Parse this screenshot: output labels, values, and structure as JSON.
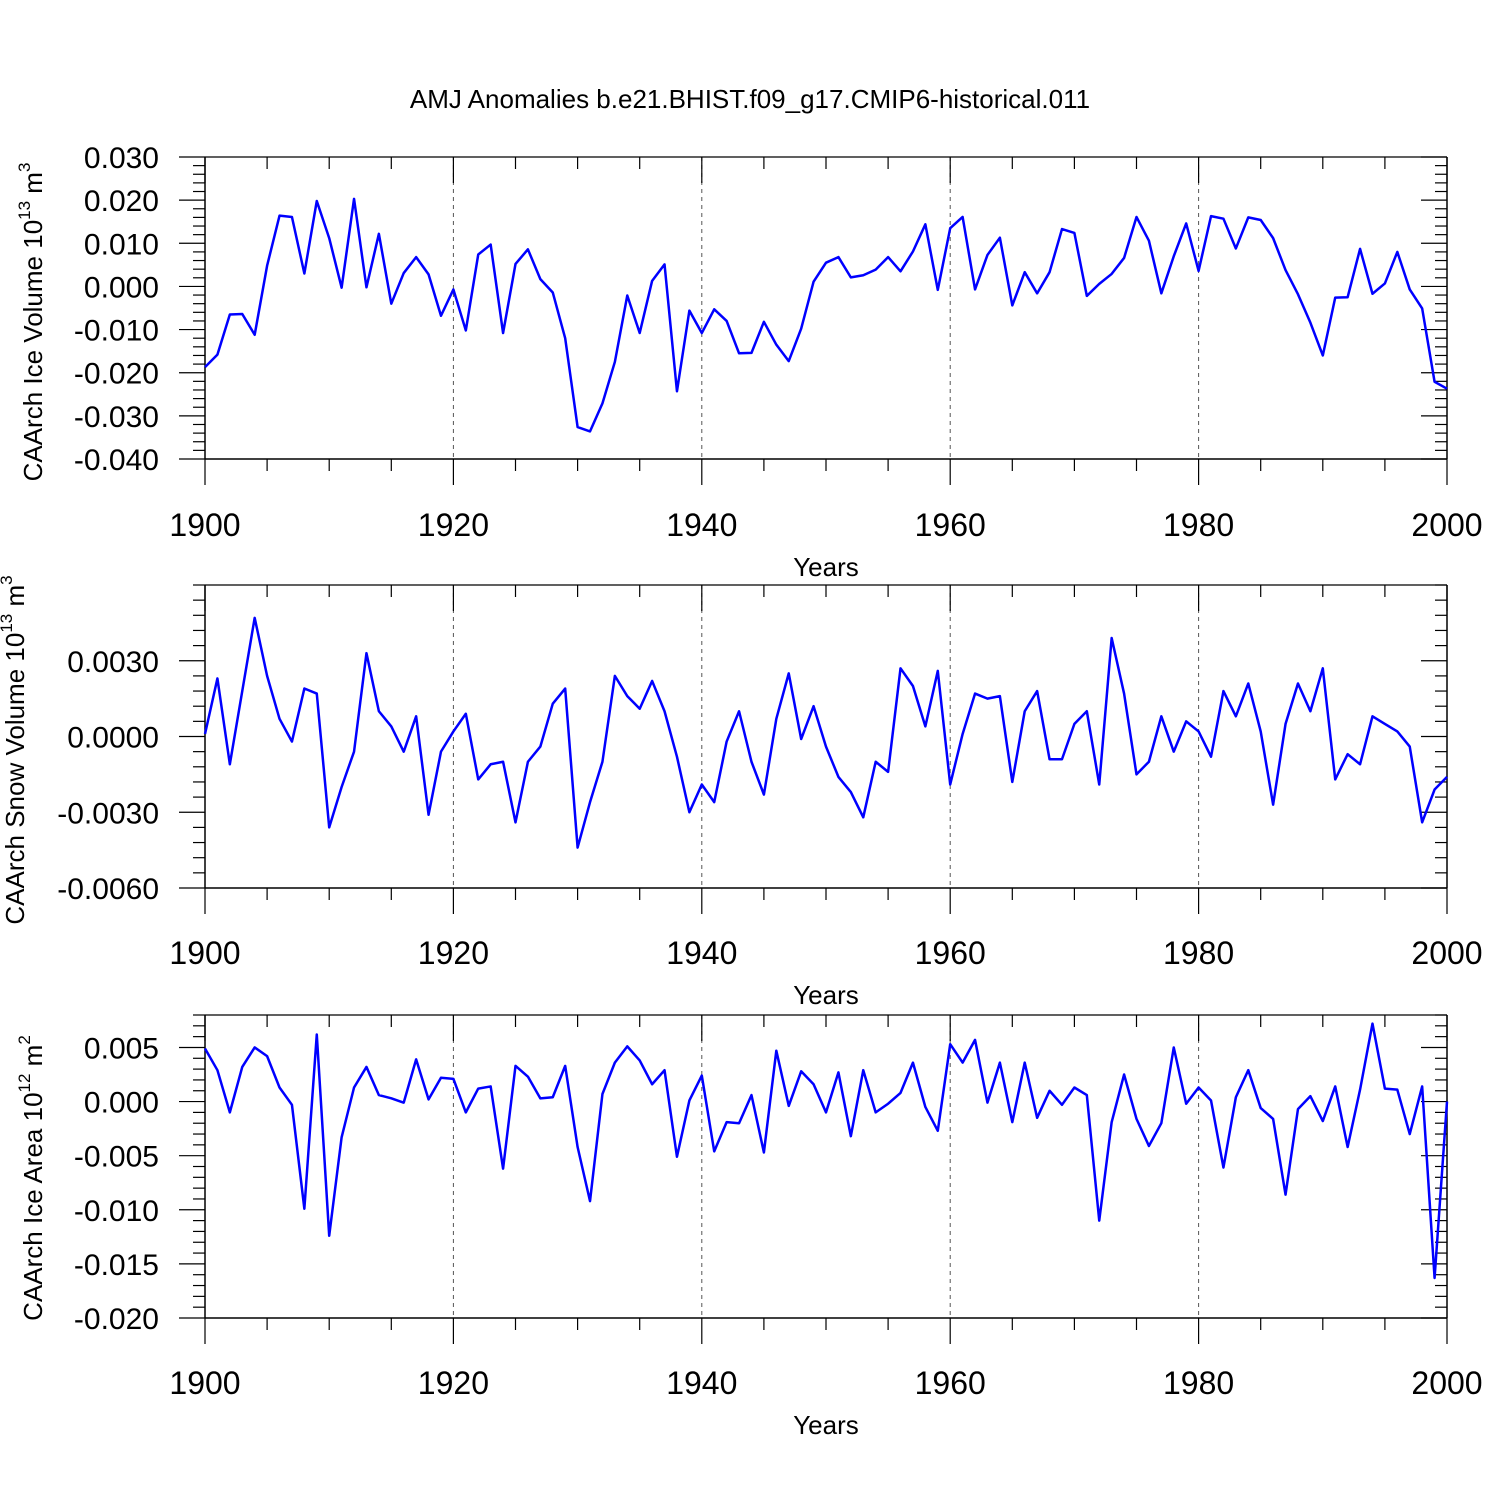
{
  "figure": {
    "title": "AMJ Anomalies b.e21.BHIST.f09_g17.CMIP6-historical.011"
  },
  "chart_data": [
    {
      "type": "line",
      "ylabel": "CAArch Ice Volume 10",
      "ylabel_exp": "13",
      "ylabel_unit": " m",
      "ylabel_unit_exp": "3",
      "xlabel": "Years",
      "xlim": [
        1900,
        2000
      ],
      "ylim": [
        -0.04,
        0.03
      ],
      "xticks": [
        "1900",
        "1920",
        "1940",
        "1960",
        "1980",
        "2000"
      ],
      "yticks": [
        {
          "v": 0.03,
          "label": "0.030"
        },
        {
          "v": 0.02,
          "label": "0.020"
        },
        {
          "v": 0.01,
          "label": "0.010"
        },
        {
          "v": 0.0,
          "label": "0.000"
        },
        {
          "v": -0.01,
          "label": "-0.010"
        },
        {
          "v": -0.02,
          "label": "-0.020"
        },
        {
          "v": -0.03,
          "label": "-0.030"
        },
        {
          "v": -0.04,
          "label": "-0.040"
        }
      ],
      "ref_line": 0.03,
      "series": [
        {
          "name": "CAArch Ice Volume",
          "color": "#0000ff",
          "x_start": 1900,
          "values": [
            -0.0187,
            -0.0158,
            -0.0065,
            -0.0064,
            -0.0112,
            0.0048,
            0.0164,
            0.0161,
            0.003,
            0.0198,
            0.0112,
            -0.0003,
            0.0203,
            -0.0002,
            0.0122,
            -0.004,
            0.0031,
            0.0068,
            0.0028,
            -0.0068,
            -0.0007,
            -0.0102,
            0.0074,
            0.0097,
            -0.0108,
            0.0052,
            0.0086,
            0.0017,
            -0.0014,
            -0.012,
            -0.0326,
            -0.0336,
            -0.0271,
            -0.0175,
            -0.0021,
            -0.0108,
            0.0013,
            0.0051,
            -0.0243,
            -0.0056,
            -0.0108,
            -0.0053,
            -0.008,
            -0.0155,
            -0.0154,
            -0.0082,
            -0.0135,
            -0.0173,
            -0.0098,
            0.0011,
            0.0055,
            0.0068,
            0.0021,
            0.0026,
            0.0039,
            0.0068,
            0.0035,
            0.0081,
            0.0144,
            -0.0008,
            0.0135,
            0.0161,
            -0.0007,
            0.0073,
            0.0113,
            -0.0044,
            0.0033,
            -0.0016,
            0.0033,
            0.0133,
            0.0124,
            -0.0022,
            0.0006,
            0.0029,
            0.0066,
            0.0161,
            0.0106,
            -0.0016,
            0.007,
            0.0146,
            0.0036,
            0.0163,
            0.0157,
            0.0088,
            0.016,
            0.0154,
            0.0112,
            0.0038,
            -0.0018,
            -0.0084,
            -0.016,
            -0.0026,
            -0.0025,
            0.0087,
            -0.0017,
            0.0007,
            0.008,
            -0.0007,
            -0.0051,
            -0.0221,
            -0.0237
          ]
        }
      ]
    },
    {
      "type": "line",
      "ylabel": "CAArch Snow Volume 10",
      "ylabel_exp": "13",
      "ylabel_unit": " m",
      "ylabel_unit_exp": "3",
      "xlabel": "Years",
      "xlim": [
        1900,
        2000
      ],
      "ylim": [
        -0.006,
        0.006
      ],
      "xticks": [
        "1900",
        "1920",
        "1940",
        "1960",
        "1980",
        "2000"
      ],
      "yticks": [
        {
          "v": 0.003,
          "label": "0.0030"
        },
        {
          "v": 0.0,
          "label": "0.0000"
        },
        {
          "v": -0.003,
          "label": "-0.0030"
        },
        {
          "v": -0.006,
          "label": "-0.0060"
        }
      ],
      "ref_line": 0.006,
      "series": [
        {
          "name": "CAArch Snow Volume",
          "color": "#0000ff",
          "x_start": 1900,
          "values": [
            0.0001,
            0.0023,
            -0.0011,
            0.0018,
            0.0047,
            0.0024,
            0.0007,
            -0.0002,
            0.0019,
            0.0017,
            -0.0036,
            -0.002,
            -0.0006,
            0.0033,
            0.001,
            0.0004,
            -0.0006,
            0.0008,
            -0.0031,
            -0.0006,
            0.0002,
            0.0009,
            -0.0017,
            -0.0011,
            -0.001,
            -0.0034,
            -0.001,
            -0.0004,
            0.0013,
            0.0019,
            -0.0044,
            -0.0026,
            -0.001,
            0.0024,
            0.0016,
            0.0011,
            0.0022,
            0.001,
            -0.0008,
            -0.003,
            -0.0019,
            -0.0026,
            -0.0002,
            0.001,
            -0.001,
            -0.0023,
            0.0007,
            0.0025,
            -0.0001,
            0.0012,
            -0.0004,
            -0.0016,
            -0.0022,
            -0.0032,
            -0.001,
            -0.0014,
            0.0027,
            0.002,
            0.0004,
            0.0026,
            -0.0019,
            0.0001,
            0.0017,
            0.0015,
            0.0016,
            -0.0018,
            0.001,
            0.0018,
            -0.0009,
            -0.0009,
            0.0005,
            0.001,
            -0.0019,
            0.0039,
            0.0017,
            -0.0015,
            -0.001,
            0.0008,
            -0.0006,
            0.0006,
            0.0002,
            -0.0008,
            0.0018,
            0.0008,
            0.0021,
            0.0002,
            -0.0027,
            0.0005,
            0.0021,
            0.001,
            0.0027,
            -0.0017,
            -0.0007,
            -0.0011,
            0.0008,
            0.0005,
            0.0002,
            -0.0004,
            -0.0034,
            -0.0021,
            -0.0016
          ]
        }
      ]
    },
    {
      "type": "line",
      "ylabel": "CAArch Ice Area 10",
      "ylabel_exp": "12",
      "ylabel_unit": " m",
      "ylabel_unit_exp": "2",
      "xlabel": "Years",
      "xlim": [
        1900,
        2000
      ],
      "ylim": [
        -0.02,
        0.008
      ],
      "xticks": [
        "1900",
        "1920",
        "1940",
        "1960",
        "1980",
        "2000"
      ],
      "yticks": [
        {
          "v": 0.005,
          "label": "0.005"
        },
        {
          "v": 0.0,
          "label": "0.000"
        },
        {
          "v": -0.005,
          "label": "-0.005"
        },
        {
          "v": -0.01,
          "label": "-0.010"
        },
        {
          "v": -0.015,
          "label": "-0.015"
        },
        {
          "v": -0.02,
          "label": "-0.020"
        }
      ],
      "ref_line": 0.008,
      "series": [
        {
          "name": "CAArch Ice Area",
          "color": "#0000ff",
          "x_start": 1900,
          "values": [
            0.0049,
            0.0029,
            -0.001,
            0.0032,
            0.005,
            0.0042,
            0.0013,
            -0.0003,
            -0.0099,
            0.0062,
            -0.0124,
            -0.0033,
            0.0013,
            0.0032,
            0.0006,
            0.0003,
            -0.0001,
            0.0039,
            0.0002,
            0.0022,
            0.0021,
            -0.001,
            0.0012,
            0.0014,
            -0.0062,
            0.0033,
            0.0023,
            0.0003,
            0.0004,
            0.0033,
            -0.0042,
            -0.0092,
            0.0007,
            0.0036,
            0.0051,
            0.0038,
            0.0016,
            0.0029,
            -0.0051,
            0.0001,
            0.0024,
            -0.0046,
            -0.0019,
            -0.002,
            0.0006,
            -0.0047,
            0.0047,
            -0.0004,
            0.0028,
            0.0016,
            -0.001,
            0.0027,
            -0.0032,
            0.0029,
            -0.001,
            -0.0002,
            0.0008,
            0.0036,
            -0.0005,
            -0.0027,
            0.0053,
            0.0036,
            0.0057,
            -0.0001,
            0.0036,
            -0.0019,
            0.0036,
            -0.0015,
            0.001,
            -0.0003,
            0.0013,
            0.0006,
            -0.011,
            -0.0019,
            0.0025,
            -0.0016,
            -0.0041,
            -0.002,
            0.005,
            -0.0002,
            0.0013,
            0.0001,
            -0.0061,
            0.0004,
            0.0029,
            -0.0006,
            -0.0016,
            -0.0086,
            -0.0007,
            0.0005,
            -0.0018,
            0.0014,
            -0.0042,
            0.0011,
            0.0072,
            0.0012,
            0.0011,
            -0.003,
            0.0014,
            -0.0163,
            0.0
          ]
        }
      ]
    }
  ]
}
